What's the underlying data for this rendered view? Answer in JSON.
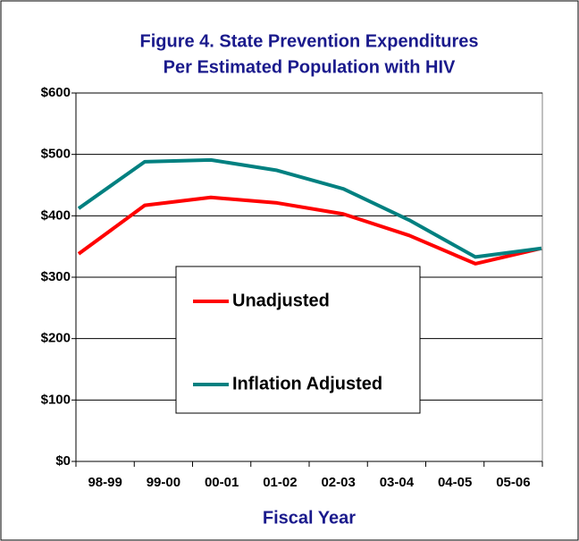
{
  "chart_data": {
    "type": "line",
    "title": [
      "Figure 4. State Prevention Expenditures",
      "Per Estimated Population with HIV"
    ],
    "x_label": "Fiscal Year",
    "categories": [
      "98-99",
      "99-00",
      "00-01",
      "01-02",
      "02-03",
      "03-04",
      "04-05",
      "05-06"
    ],
    "series": [
      {
        "name": "Unadjusted",
        "color": "#ff0000",
        "values": [
          338,
          417,
          430,
          421,
          403,
          368,
          322,
          347
        ]
      },
      {
        "name": "Inflation Adjusted",
        "color": "#008080",
        "values": [
          412,
          488,
          491,
          474,
          444,
          393,
          333,
          347
        ]
      }
    ],
    "ylim": [
      0,
      600
    ],
    "yticks": [
      {
        "value": 0,
        "label": "$0"
      },
      {
        "value": 100,
        "label": "$100"
      },
      {
        "value": 200,
        "label": "$200"
      },
      {
        "value": 300,
        "label": "$300"
      },
      {
        "value": 400,
        "label": "$400"
      },
      {
        "value": 500,
        "label": "$500"
      },
      {
        "value": 600,
        "label": "$600"
      }
    ],
    "grid": true
  }
}
